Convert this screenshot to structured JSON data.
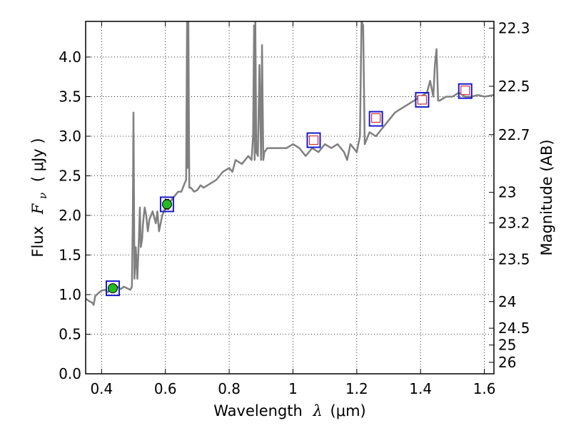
{
  "chart_data": {
    "type": "line",
    "xlabel_prefix": "Wavelength",
    "xlabel_symbol": "λ",
    "xlabel_unit": "(μm)",
    "ylabel_prefix": "Flux",
    "ylabel_symbol": "F",
    "ylabel_subscript": "ν",
    "ylabel_unit": "( μJy )",
    "y2label": "Magnitude (AB)",
    "xlim": [
      0.35,
      1.63
    ],
    "ylim": [
      0.0,
      4.45
    ],
    "grid": true,
    "x_ticks": [
      0.4,
      0.6,
      0.8,
      1.0,
      1.2,
      1.4,
      1.6
    ],
    "x_tick_labels": [
      "0.4",
      "0.6",
      "0.8",
      "1",
      "1.2",
      "1.4",
      "1.6"
    ],
    "y_ticks": [
      0.0,
      0.5,
      1.0,
      1.5,
      2.0,
      2.5,
      3.0,
      3.5,
      4.0
    ],
    "y_tick_labels": [
      "0.0",
      "0.5",
      "1.0",
      "1.5",
      "2.0",
      "2.5",
      "3.0",
      "3.5",
      "4.0"
    ],
    "mag_ticks": [
      22.3,
      22.5,
      22.7,
      23,
      23.2,
      23.5,
      24,
      24.5,
      25,
      26
    ],
    "mag_tick_labels": [
      "22.3",
      "22.5",
      "22.7",
      "23",
      "23.2",
      "23.5",
      "24",
      "24.5",
      "25",
      "26"
    ],
    "series": [
      {
        "kind": "model-spectrum",
        "color": "#808080",
        "x": [
          0.35,
          0.36,
          0.37,
          0.375,
          0.38,
          0.39,
          0.4,
          0.41,
          0.42,
          0.43,
          0.44,
          0.45,
          0.46,
          0.47,
          0.48,
          0.49,
          0.495,
          0.498,
          0.5,
          0.503,
          0.507,
          0.512,
          0.517,
          0.52,
          0.523,
          0.527,
          0.53,
          0.535,
          0.54,
          0.545,
          0.55,
          0.56,
          0.57,
          0.575,
          0.58,
          0.59,
          0.6,
          0.61,
          0.62,
          0.63,
          0.64,
          0.65,
          0.66,
          0.665,
          0.668,
          0.67,
          0.672,
          0.675,
          0.68,
          0.69,
          0.7,
          0.71,
          0.72,
          0.74,
          0.76,
          0.78,
          0.8,
          0.81,
          0.82,
          0.84,
          0.86,
          0.87,
          0.875,
          0.878,
          0.88,
          0.882,
          0.885,
          0.89,
          0.895,
          0.9,
          0.903,
          0.907,
          0.91,
          0.92,
          0.94,
          0.96,
          0.98,
          1.0,
          1.02,
          1.04,
          1.06,
          1.08,
          1.1,
          1.12,
          1.14,
          1.16,
          1.17,
          1.18,
          1.19,
          1.2,
          1.21,
          1.215,
          1.22,
          1.225,
          1.23,
          1.24,
          1.26,
          1.28,
          1.3,
          1.32,
          1.34,
          1.36,
          1.38,
          1.4,
          1.42,
          1.43,
          1.44,
          1.445,
          1.45,
          1.455,
          1.46,
          1.48,
          1.5,
          1.52,
          1.54,
          1.56,
          1.58,
          1.6,
          1.63
        ],
        "y": [
          0.95,
          0.92,
          0.9,
          0.87,
          0.98,
          1.02,
          1.05,
          1.06,
          1.03,
          1.08,
          1.05,
          1.1,
          1.07,
          1.1,
          1.08,
          1.06,
          1.1,
          2.0,
          3.3,
          1.2,
          1.6,
          1.2,
          1.7,
          2.1,
          1.6,
          1.7,
          1.9,
          2.1,
          2.0,
          1.8,
          1.95,
          2.05,
          1.9,
          2.05,
          1.8,
          2.0,
          2.1,
          2.15,
          2.2,
          2.25,
          2.3,
          2.3,
          2.4,
          2.45,
          4.45,
          2.6,
          4.45,
          2.35,
          2.35,
          2.3,
          2.32,
          2.38,
          2.35,
          2.4,
          2.45,
          2.55,
          2.6,
          2.55,
          2.7,
          2.65,
          2.75,
          2.7,
          3.0,
          4.4,
          2.7,
          4.45,
          2.8,
          2.75,
          3.9,
          2.7,
          4.15,
          2.7,
          2.8,
          2.85,
          2.85,
          2.85,
          2.85,
          2.9,
          2.85,
          2.75,
          2.85,
          2.8,
          2.9,
          2.85,
          2.9,
          2.8,
          2.7,
          2.9,
          2.85,
          2.8,
          3.0,
          4.45,
          4.4,
          2.9,
          2.95,
          3.05,
          3.0,
          3.1,
          3.2,
          3.3,
          3.35,
          3.4,
          3.45,
          3.5,
          3.55,
          3.7,
          3.5,
          3.9,
          4.1,
          3.45,
          3.45,
          3.5,
          3.5,
          3.55,
          3.5,
          3.5,
          3.52,
          3.5,
          3.52
        ]
      }
    ],
    "photometry_ground": {
      "x": [
        0.435,
        0.605
      ],
      "y": [
        1.08,
        2.14
      ],
      "yerr": [
        0.05,
        0.06
      ],
      "fill": "#22bb22"
    },
    "photometry_ir": {
      "x": [
        1.065,
        1.26,
        1.405,
        1.54
      ],
      "y": [
        2.95,
        3.23,
        3.46,
        3.58
      ],
      "fill": "#ffffff",
      "inner_edge": "#cc3333"
    },
    "model_box_markers": {
      "x": [
        0.435,
        0.605,
        1.065,
        1.26,
        1.405,
        1.54
      ],
      "y": [
        1.08,
        2.14,
        2.95,
        3.22,
        3.46,
        3.57
      ],
      "edge": "#1a1acc"
    }
  }
}
